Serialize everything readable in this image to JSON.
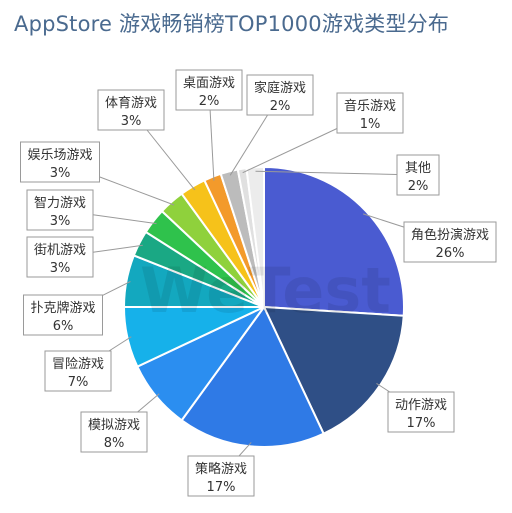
{
  "chart_data": {
    "type": "pie",
    "title": "AppStore 游戏畅销榜TOP1000游戏类型分布",
    "slices": [
      {
        "name": "角色扮演游戏",
        "value": 26,
        "label": "26%",
        "color": "#4a5bd1"
      },
      {
        "name": "动作游戏",
        "value": 17,
        "label": "17%",
        "color": "#2f4f86"
      },
      {
        "name": "策略游戏",
        "value": 17,
        "label": "17%",
        "color": "#2f7ae6"
      },
      {
        "name": "模拟游戏",
        "value": 8,
        "label": "8%",
        "color": "#2b8ef0"
      },
      {
        "name": "冒险游戏",
        "value": 7,
        "label": "7%",
        "color": "#16b1ea"
      },
      {
        "name": "扑克牌游戏",
        "value": 6,
        "label": "6%",
        "color": "#13a8bf"
      },
      {
        "name": "街机游戏",
        "value": 3,
        "label": "3%",
        "color": "#1aa884"
      },
      {
        "name": "智力游戏",
        "value": 3,
        "label": "3%",
        "color": "#2fc24c"
      },
      {
        "name": "娱乐场游戏",
        "value": 3,
        "label": "3%",
        "color": "#8fd13c"
      },
      {
        "name": "体育游戏",
        "value": 3,
        "label": "3%",
        "color": "#f6c21a"
      },
      {
        "name": "桌面游戏",
        "value": 2,
        "label": "2%",
        "color": "#f39a2b"
      },
      {
        "name": "家庭游戏",
        "value": 2,
        "label": "2%",
        "color": "#bcbcbc"
      },
      {
        "name": "音乐游戏",
        "value": 1,
        "label": "1%",
        "color": "#e0e0e0"
      },
      {
        "name": "其他",
        "value": 2,
        "label": "2%",
        "color": "#ececec"
      }
    ],
    "watermark": "WeTest"
  },
  "colors": {
    "title": "#4a6a8f",
    "leader": "#9a9a9a"
  }
}
